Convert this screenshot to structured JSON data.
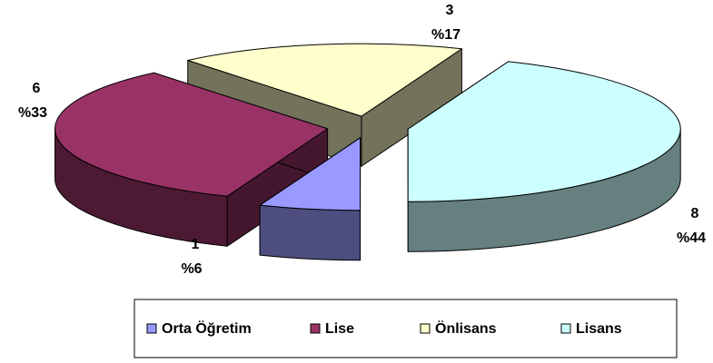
{
  "chart_data": {
    "type": "pie3d",
    "categories": [
      "Orta Öğretim",
      "Lise",
      "Önlisans",
      "Lisans"
    ],
    "values": [
      1,
      6,
      3,
      8
    ],
    "percentages": [
      6,
      33,
      17,
      44
    ],
    "percentage_labels": [
      "%6",
      "%33",
      "%17",
      "%44"
    ],
    "colors": [
      "#9999ff",
      "#993366",
      "#ffffcc",
      "#ccffff"
    ],
    "legend": "bottom"
  }
}
